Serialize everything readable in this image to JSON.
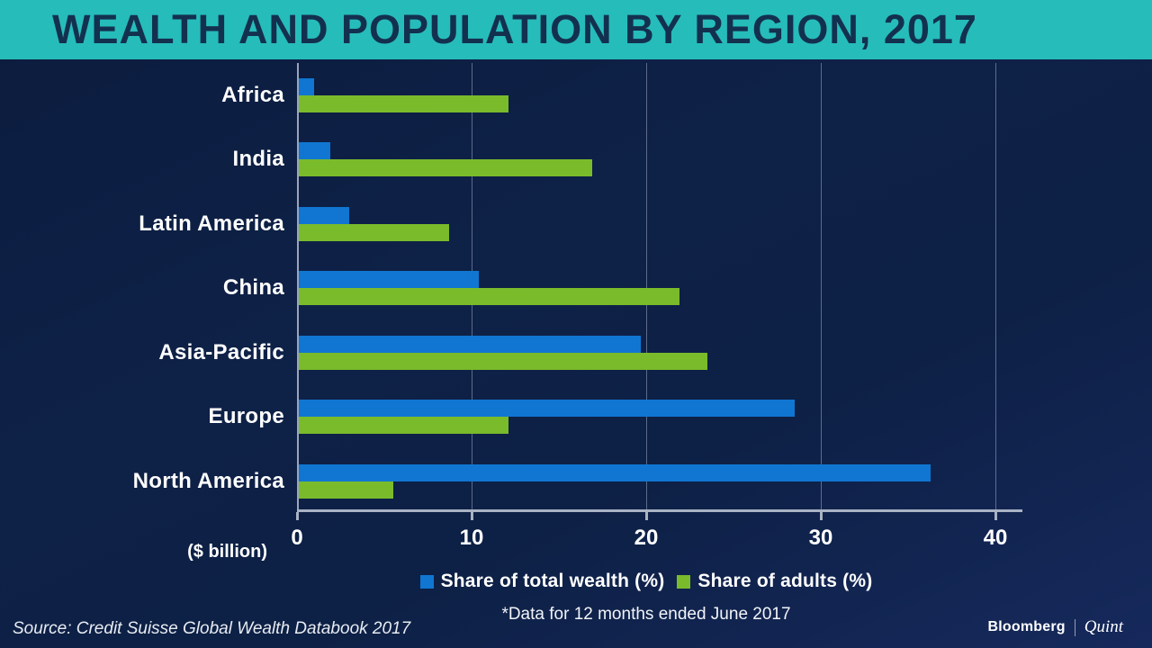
{
  "header": {
    "title": "WEALTH AND POPULATION BY REGION, 2017"
  },
  "colors": {
    "header_bg": "#26bcba",
    "title_text": "#13304f",
    "background_top": "#0b1c3e",
    "background_bottom": "#16295c",
    "wealth_bar": "#1076d2",
    "adults_bar": "#7abb2b",
    "axis": "#a9b3c4",
    "gridline": "rgba(200,212,230,0.42)",
    "text": "#ffffff"
  },
  "chart_data": {
    "type": "bar",
    "orientation": "horizontal",
    "title": "WEALTH AND POPULATION BY REGION, 2017",
    "categories": [
      "Africa",
      "India",
      "Latin America",
      "China",
      "Asia-Pacific",
      "Europe",
      "North America"
    ],
    "series": [
      {
        "name": "Share of total wealth (%)",
        "color": "#1076d2",
        "values": [
          0.9,
          1.8,
          2.9,
          10.3,
          19.6,
          28.4,
          36.2
        ]
      },
      {
        "name": "Share of adults (%)",
        "color": "#7abb2b",
        "values": [
          12.0,
          16.8,
          8.6,
          21.8,
          23.4,
          12.0,
          5.4
        ]
      }
    ],
    "x_ticks": [
      "0",
      "10",
      "20",
      "30",
      "40"
    ],
    "xlim": [
      0,
      41.5
    ],
    "x_max_tick": 40,
    "axis_unit_label": "($ billion)",
    "grid": "vertical gridlines at 10, 20, 30, 40",
    "legend_position": "bottom-center"
  },
  "footer": {
    "footnote": "*Data for 12 months ended June 2017",
    "source": "Source: Credit Suisse Global Wealth Databook 2017",
    "logo_left": "Bloomberg",
    "logo_right": "Quint"
  }
}
